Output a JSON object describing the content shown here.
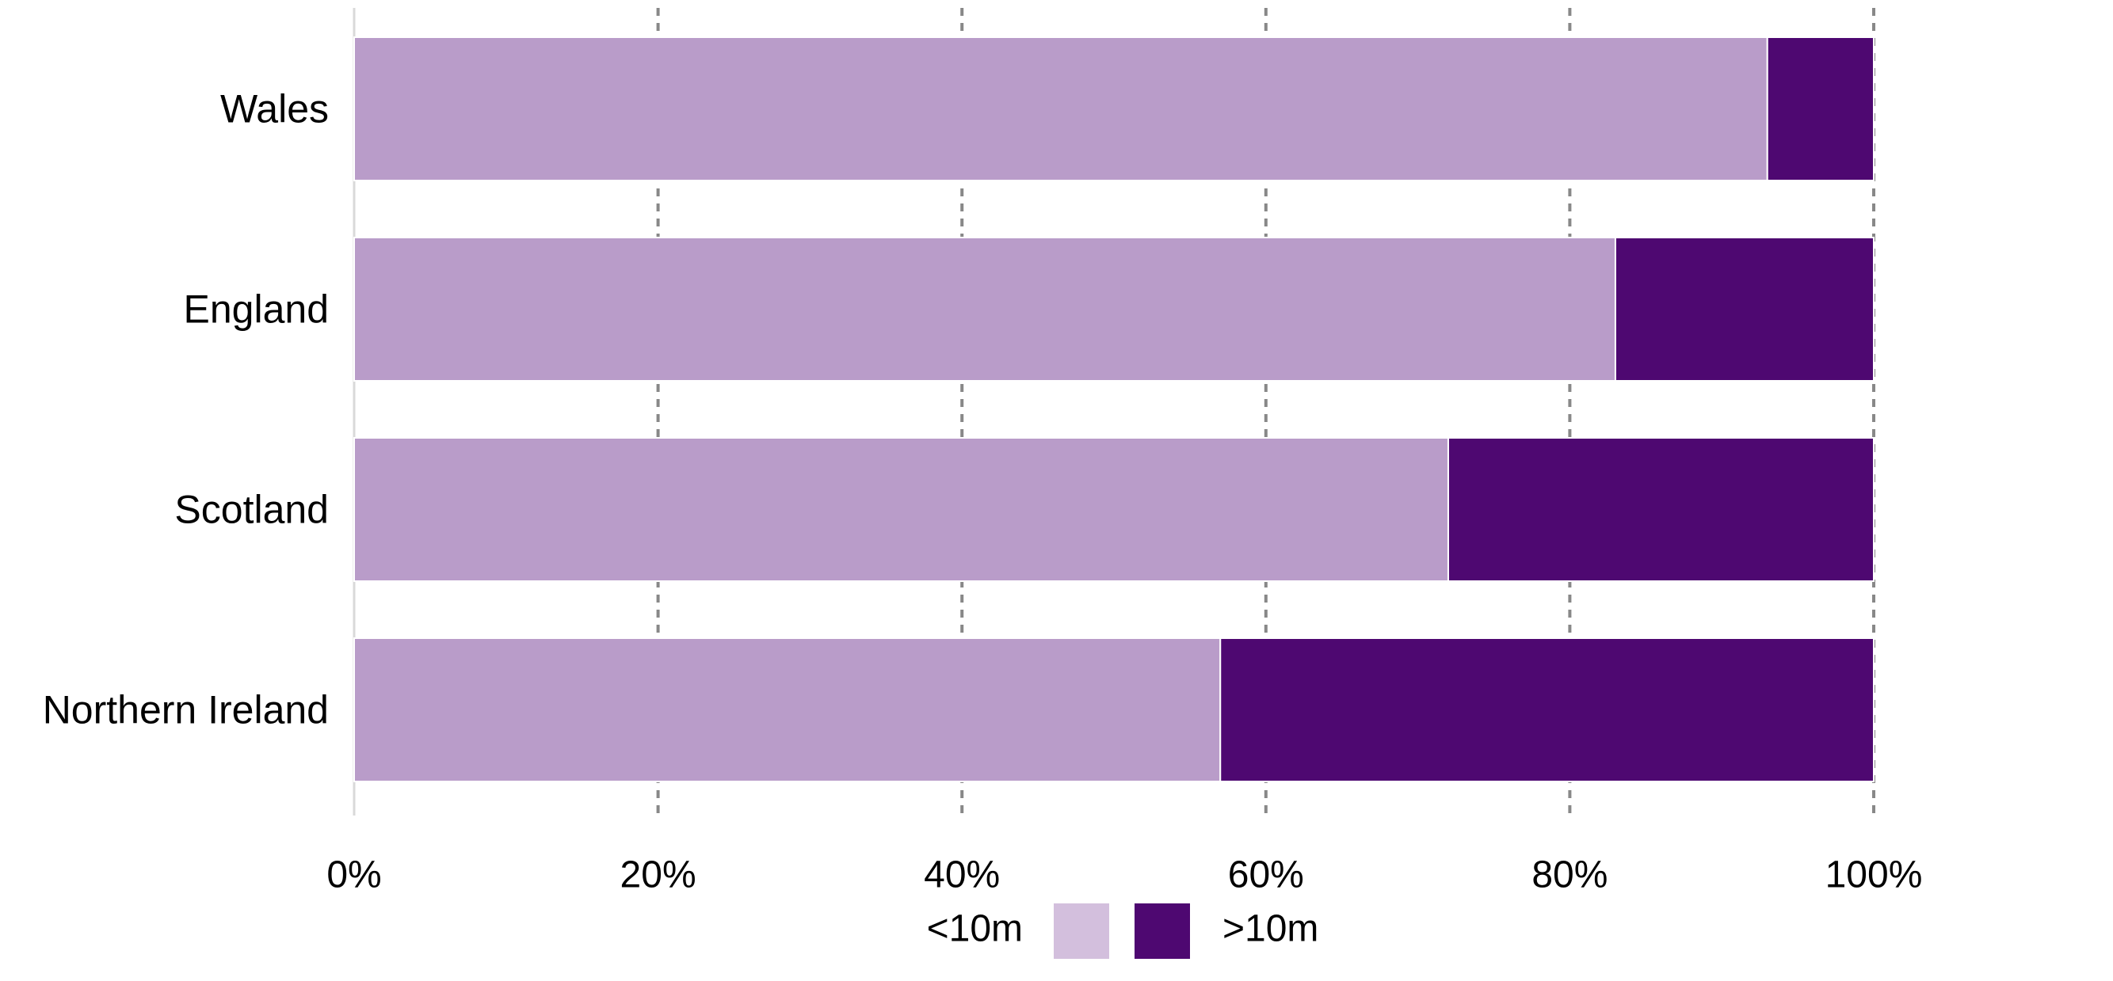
{
  "chart_data": {
    "type": "bar",
    "orientation": "horizontal",
    "stacked": true,
    "title": "",
    "xlabel": "",
    "ylabel": "",
    "categories": [
      "Wales",
      "England",
      "Scotland",
      "Northern Ireland"
    ],
    "series": [
      {
        "name": "<10m",
        "values": [
          93,
          83,
          72,
          57
        ],
        "bar_color": "#b99cc9",
        "legend_color": "#d3bfdd"
      },
      {
        "name": ">10m",
        "values": [
          7,
          17,
          28,
          43
        ],
        "bar_color": "#4e0871",
        "legend_color": "#4e0871"
      }
    ],
    "xlim": [
      0,
      100
    ],
    "xticks": [
      0,
      20,
      40,
      60,
      80,
      100
    ],
    "xtick_labels": [
      "0%",
      "20%",
      "40%",
      "60%",
      "80%",
      "100%"
    ],
    "grid": true,
    "legend_position": "bottom-center"
  }
}
